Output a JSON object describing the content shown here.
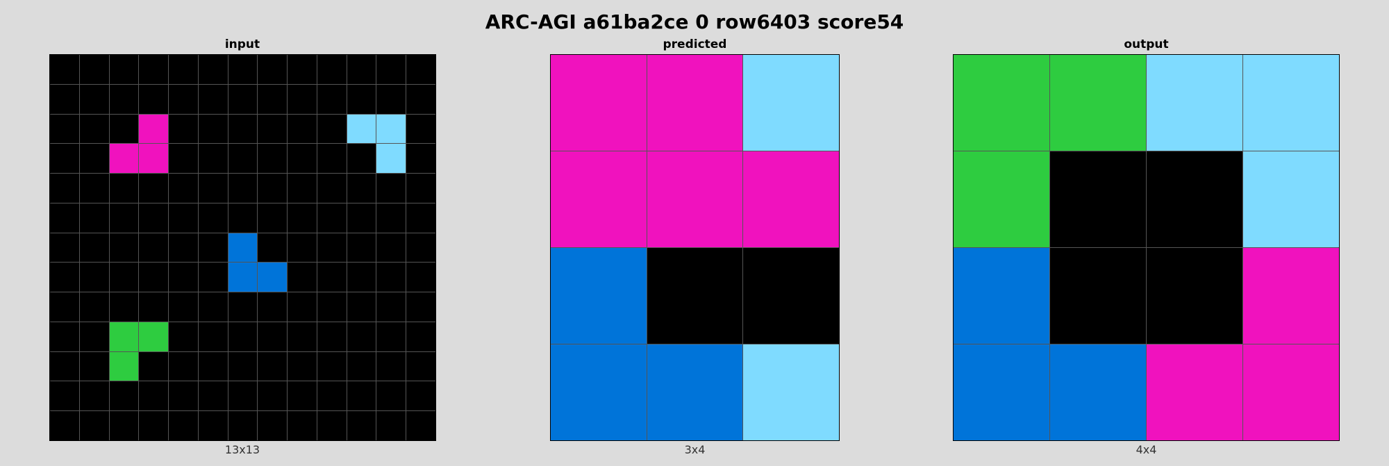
{
  "title": "ARC-AGI a61ba2ce 0 row6403 score54",
  "palette": {
    "0": "#000000",
    "1": "#0074d9",
    "3": "#2ecc40",
    "6": "#f012be",
    "8": "#7fdbff"
  },
  "panels": [
    {
      "title": "input",
      "caption": "13x13",
      "grid": [
        [
          0,
          0,
          0,
          0,
          0,
          0,
          0,
          0,
          0,
          0,
          0,
          0,
          0
        ],
        [
          0,
          0,
          0,
          0,
          0,
          0,
          0,
          0,
          0,
          0,
          0,
          0,
          0
        ],
        [
          0,
          0,
          0,
          6,
          0,
          0,
          0,
          0,
          0,
          0,
          8,
          8,
          0
        ],
        [
          0,
          0,
          6,
          6,
          0,
          0,
          0,
          0,
          0,
          0,
          0,
          8,
          0
        ],
        [
          0,
          0,
          0,
          0,
          0,
          0,
          0,
          0,
          0,
          0,
          0,
          0,
          0
        ],
        [
          0,
          0,
          0,
          0,
          0,
          0,
          0,
          0,
          0,
          0,
          0,
          0,
          0
        ],
        [
          0,
          0,
          0,
          0,
          0,
          0,
          1,
          0,
          0,
          0,
          0,
          0,
          0
        ],
        [
          0,
          0,
          0,
          0,
          0,
          0,
          1,
          1,
          0,
          0,
          0,
          0,
          0
        ],
        [
          0,
          0,
          0,
          0,
          0,
          0,
          0,
          0,
          0,
          0,
          0,
          0,
          0
        ],
        [
          0,
          0,
          3,
          3,
          0,
          0,
          0,
          0,
          0,
          0,
          0,
          0,
          0
        ],
        [
          0,
          0,
          3,
          0,
          0,
          0,
          0,
          0,
          0,
          0,
          0,
          0,
          0
        ],
        [
          0,
          0,
          0,
          0,
          0,
          0,
          0,
          0,
          0,
          0,
          0,
          0,
          0
        ],
        [
          0,
          0,
          0,
          0,
          0,
          0,
          0,
          0,
          0,
          0,
          0,
          0,
          0
        ]
      ]
    },
    {
      "title": "predicted",
      "caption": "3x4",
      "grid": [
        [
          6,
          6,
          8
        ],
        [
          6,
          6,
          6
        ],
        [
          1,
          0,
          0
        ],
        [
          1,
          1,
          8
        ]
      ]
    },
    {
      "title": "output",
      "caption": "4x4",
      "grid": [
        [
          3,
          3,
          8,
          8
        ],
        [
          3,
          0,
          0,
          8
        ],
        [
          1,
          0,
          0,
          6
        ],
        [
          1,
          1,
          6,
          6
        ]
      ]
    }
  ]
}
